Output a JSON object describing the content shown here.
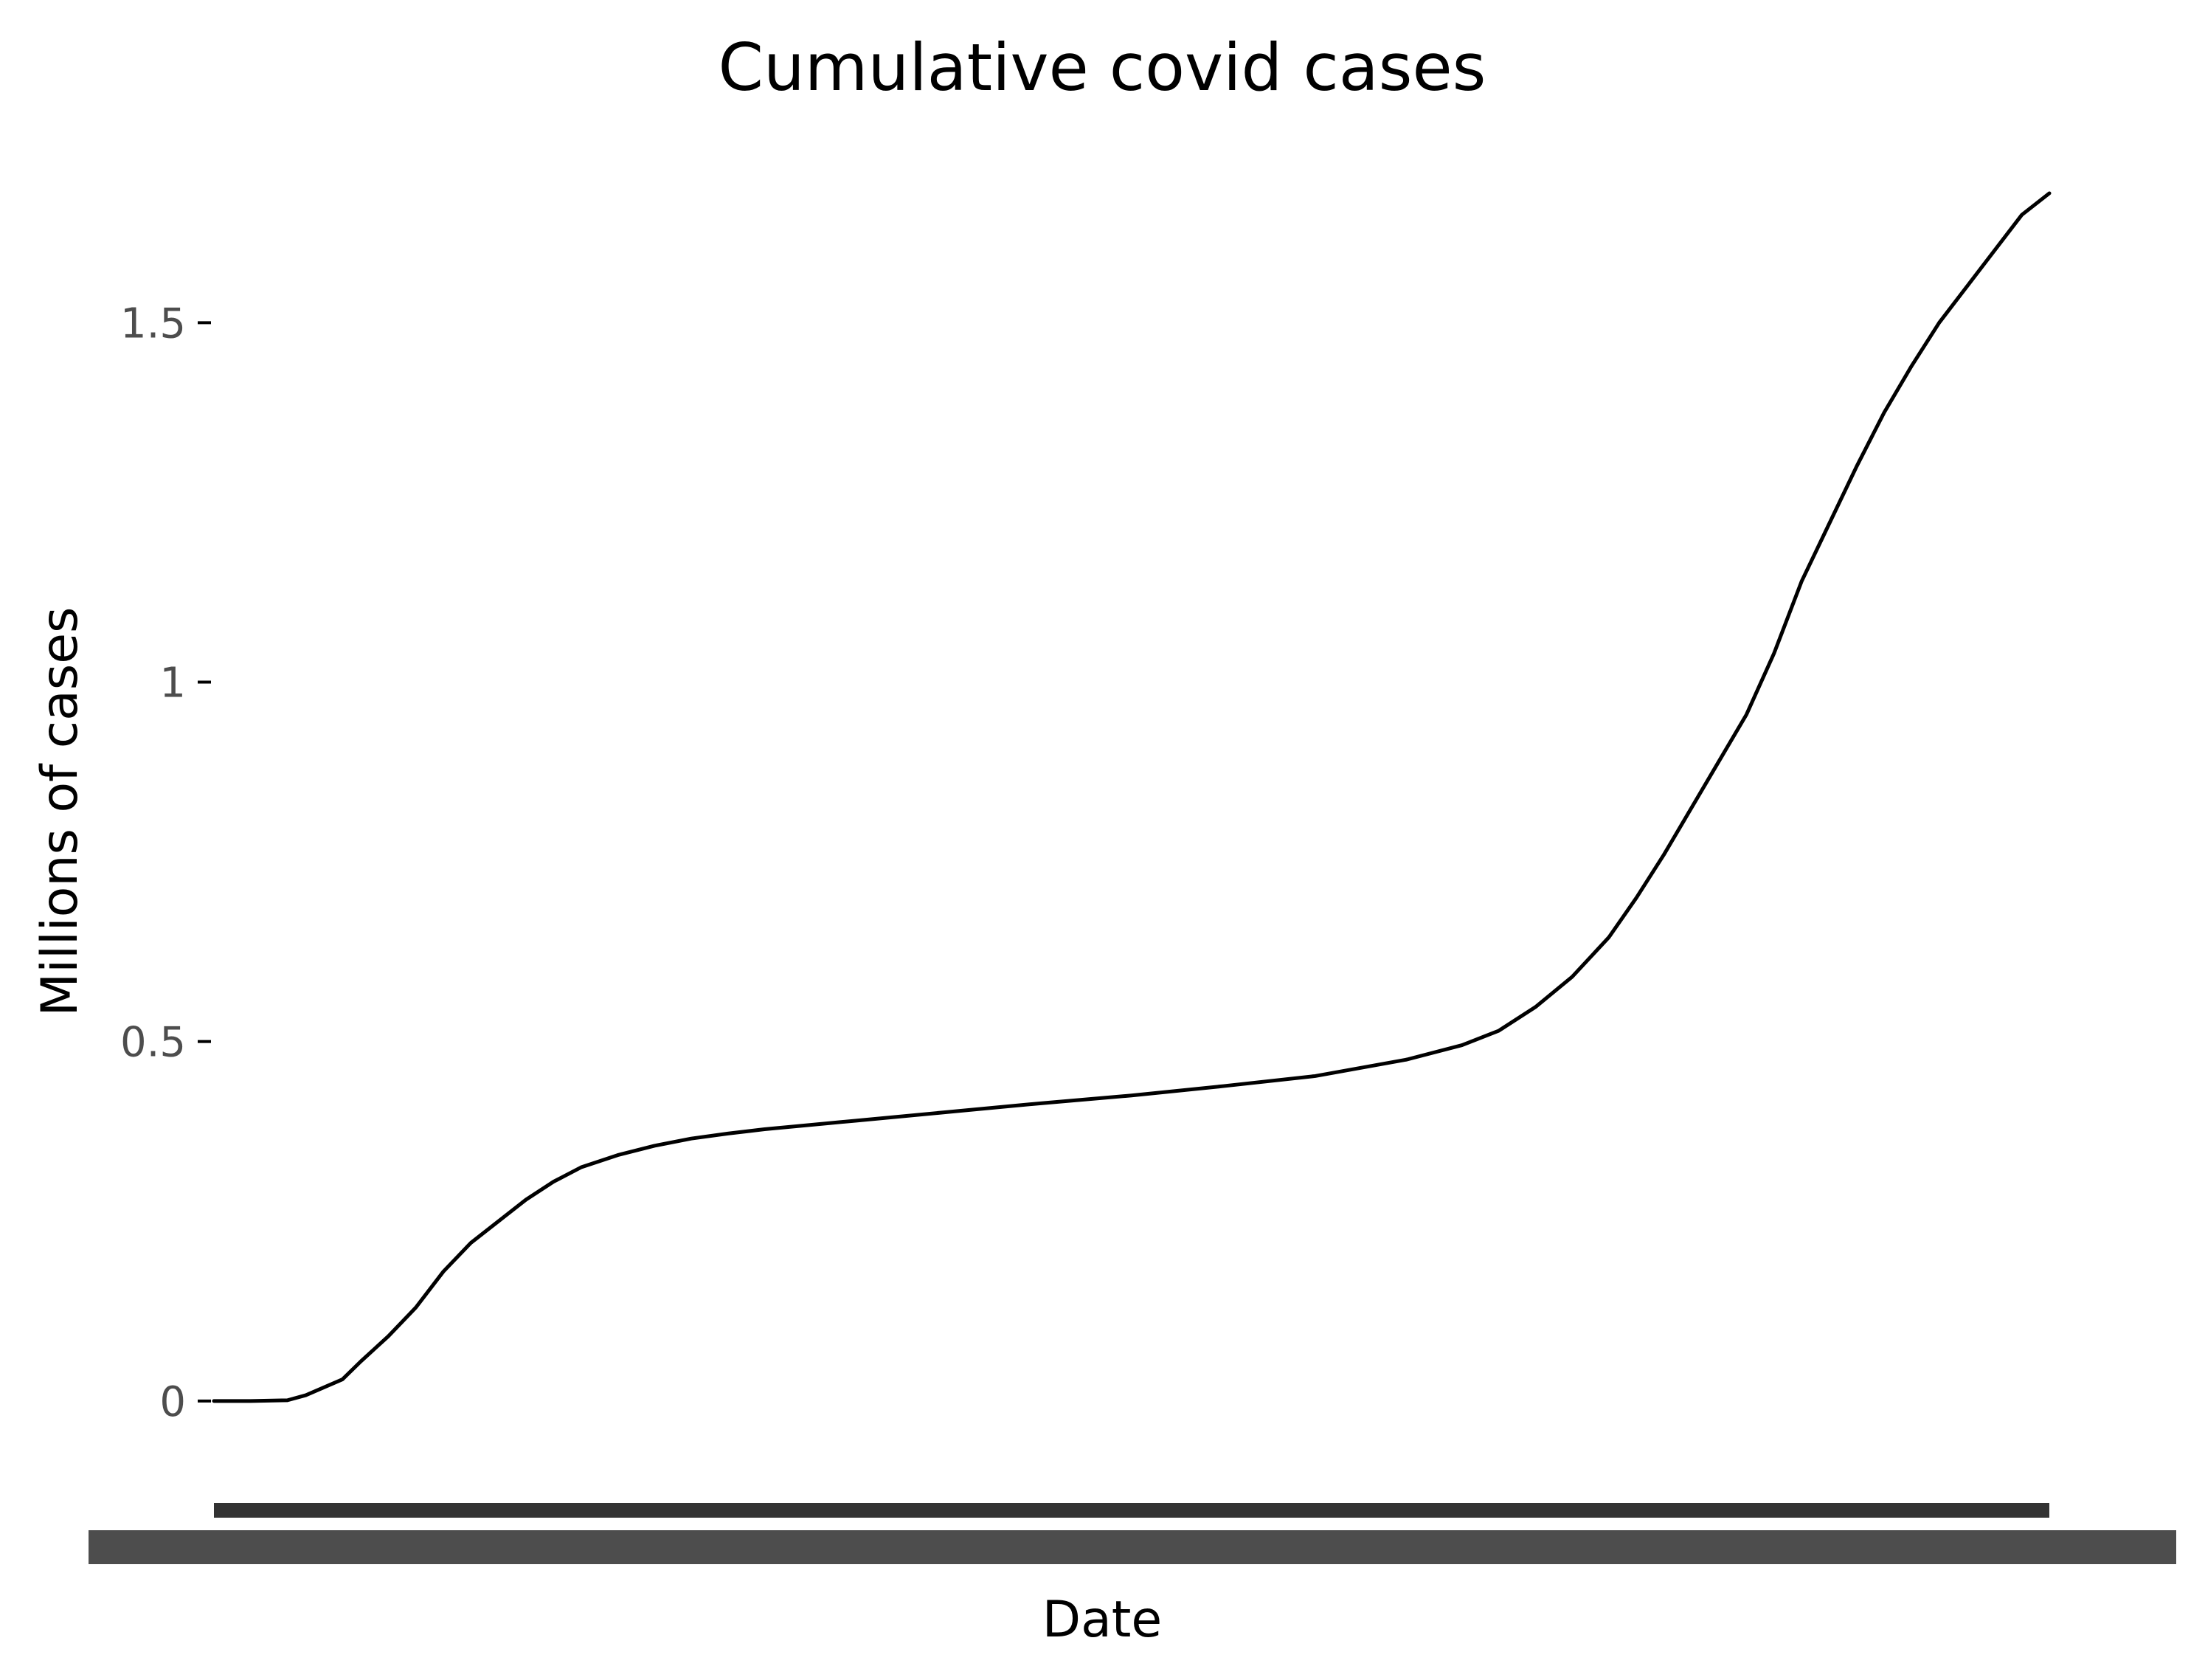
{
  "chart_data": {
    "type": "line",
    "title": "Cumulative covid cases",
    "xlabel": "Date",
    "ylabel": "Millions of cases",
    "ylim": [
      -0.11,
      1.76
    ],
    "yticks": [
      0,
      0.5,
      1,
      1.5
    ],
    "ytick_labels": [
      "0",
      "0.5",
      "1",
      "1.5"
    ],
    "grid": false,
    "legend": "none",
    "x_tick_labels_note": "x tick labels are overplotted and unreadable",
    "series": [
      {
        "color": "#000000",
        "x_range_percent": [
          0,
          100
        ],
        "points": [
          [
            0,
            0.0
          ],
          [
            2,
            0.0
          ],
          [
            4,
            0.001
          ],
          [
            5,
            0.008
          ],
          [
            7,
            0.03
          ],
          [
            8,
            0.055
          ],
          [
            9.5,
            0.09
          ],
          [
            11,
            0.13
          ],
          [
            12.5,
            0.18
          ],
          [
            14,
            0.22
          ],
          [
            15.5,
            0.25
          ],
          [
            17,
            0.28
          ],
          [
            18.5,
            0.305
          ],
          [
            20,
            0.325
          ],
          [
            22,
            0.342
          ],
          [
            24,
            0.355
          ],
          [
            26,
            0.365
          ],
          [
            28,
            0.372
          ],
          [
            30,
            0.378
          ],
          [
            35,
            0.39
          ],
          [
            40,
            0.402
          ],
          [
            45,
            0.414
          ],
          [
            50,
            0.425
          ],
          [
            55,
            0.438
          ],
          [
            60,
            0.452
          ],
          [
            65,
            0.475
          ],
          [
            68,
            0.495
          ],
          [
            70,
            0.515
          ],
          [
            72,
            0.548
          ],
          [
            74,
            0.59
          ],
          [
            76,
            0.645
          ],
          [
            77.5,
            0.7
          ],
          [
            79,
            0.76
          ],
          [
            80.5,
            0.825
          ],
          [
            82,
            0.89
          ],
          [
            83.5,
            0.955
          ],
          [
            85,
            1.04
          ],
          [
            86.5,
            1.14
          ],
          [
            88,
            1.22
          ],
          [
            89.5,
            1.3
          ],
          [
            91,
            1.375
          ],
          [
            92.5,
            1.44
          ],
          [
            94,
            1.5
          ],
          [
            95.5,
            1.55
          ],
          [
            97,
            1.6
          ],
          [
            98.5,
            1.65
          ],
          [
            100,
            1.68
          ]
        ]
      }
    ]
  }
}
